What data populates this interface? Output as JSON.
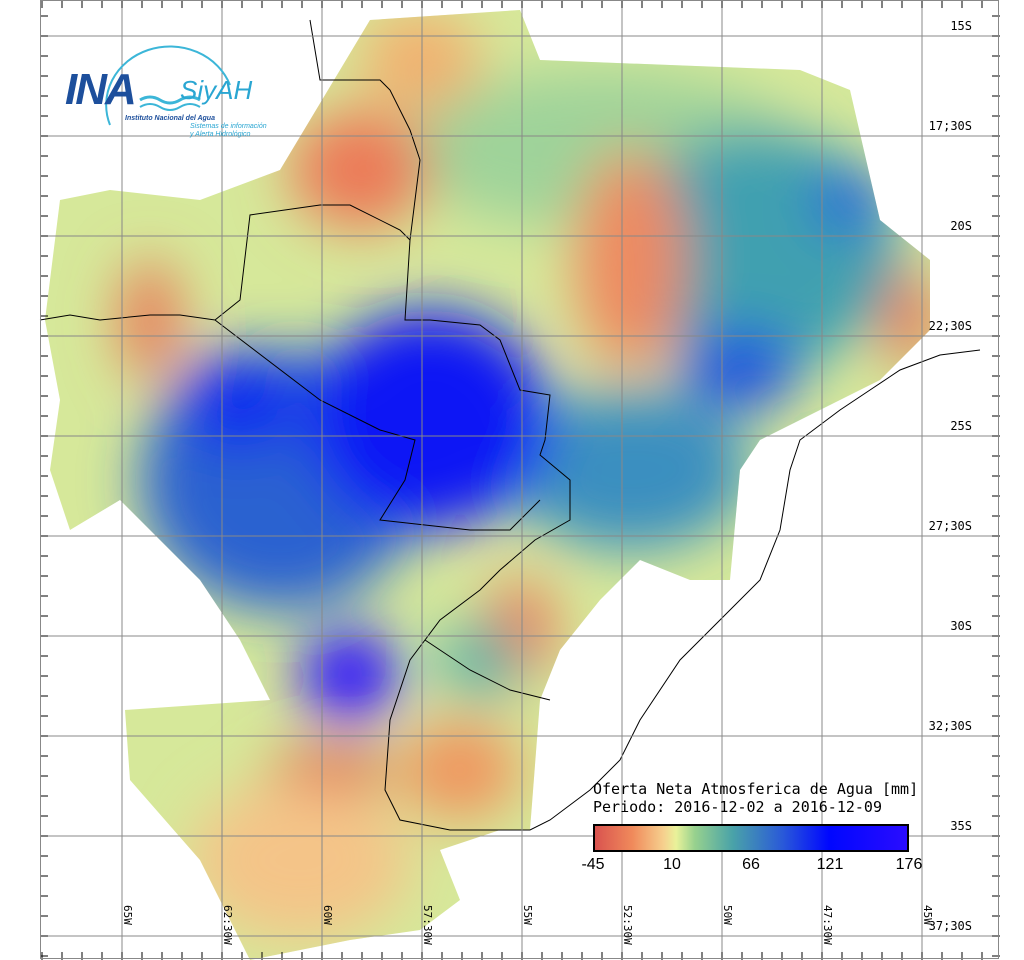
{
  "logo": {
    "main": "INA",
    "sub": "SiyAH",
    "institute": "Instituto Nacional del Agua",
    "system_line1": "Sistemas de información",
    "system_line2": "y Alerta Hidrológico"
  },
  "legend": {
    "title": "Oferta Neta Atmosferica de Agua [mm]",
    "period": "Periodo: 2016-12-02 a 2016-12-09",
    "ticks": [
      "-45",
      "10",
      "66",
      "121",
      "176"
    ],
    "colors": [
      "#d9534f",
      "#f6d08e",
      "#97d18e",
      "#2a5ad8",
      "#2a0cff"
    ]
  },
  "latitude_labels": [
    "15S",
    "17;30S",
    "20S",
    "22;30S",
    "25S",
    "27;30S",
    "30S",
    "32;30S",
    "35S",
    "37;30S"
  ],
  "longitude_labels": [
    "65W",
    "62:30W",
    "60W",
    "57:30W",
    "55W",
    "52:30W",
    "50W",
    "47:30W",
    "45W"
  ]
}
